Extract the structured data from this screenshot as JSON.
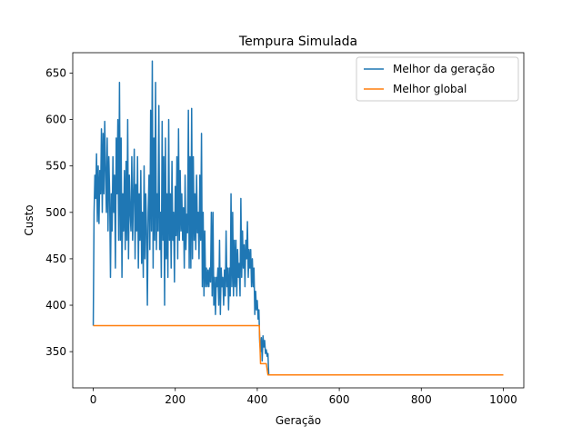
{
  "chart_data": {
    "type": "line",
    "title": "Tempura Simulada",
    "xlabel": "Geração",
    "ylabel": "Custo",
    "xlim": [
      -50,
      1050
    ],
    "ylim": [
      311,
      672
    ],
    "xticks": [
      0,
      200,
      400,
      600,
      800,
      1000
    ],
    "yticks": [
      350,
      400,
      450,
      500,
      550,
      600,
      650
    ],
    "grid": false,
    "legend_position": "top-right",
    "series": [
      {
        "name": "Melhor da geração",
        "color": "#1f77b4",
        "keypoints": [
          [
            0,
            378
          ],
          [
            2,
            500
          ],
          [
            4,
            540
          ],
          [
            6,
            515
          ],
          [
            8,
            563
          ],
          [
            10,
            490
          ],
          [
            12,
            550
          ],
          [
            14,
            488
          ],
          [
            16,
            545
          ],
          [
            18,
            520
          ],
          [
            20,
            590
          ],
          [
            22,
            500
          ],
          [
            24,
            585
          ],
          [
            26,
            520
          ],
          [
            28,
            598
          ],
          [
            30,
            545
          ],
          [
            32,
            500
          ],
          [
            34,
            580
          ],
          [
            36,
            480
          ],
          [
            38,
            560
          ],
          [
            40,
            520
          ],
          [
            42,
            430
          ],
          [
            44,
            520
          ],
          [
            46,
            480
          ],
          [
            48,
            560
          ],
          [
            50,
            500
          ],
          [
            52,
            540
          ],
          [
            54,
            440
          ],
          [
            56,
            580
          ],
          [
            58,
            520
          ],
          [
            60,
            600
          ],
          [
            62,
            470
          ],
          [
            64,
            640
          ],
          [
            66,
            470
          ],
          [
            68,
            580
          ],
          [
            70,
            430
          ],
          [
            72,
            520
          ],
          [
            74,
            480
          ],
          [
            76,
            545
          ],
          [
            78,
            460
          ],
          [
            80,
            555
          ],
          [
            82,
            470
          ],
          [
            84,
            600
          ],
          [
            86,
            450
          ],
          [
            88,
            540
          ],
          [
            90,
            500
          ],
          [
            92,
            480
          ],
          [
            94,
            560
          ],
          [
            96,
            470
          ],
          [
            98,
            520
          ],
          [
            100,
            568
          ],
          [
            102,
            450
          ],
          [
            104,
            530
          ],
          [
            106,
            480
          ],
          [
            108,
            560
          ],
          [
            110,
            440
          ],
          [
            112,
            520
          ],
          [
            114,
            470
          ],
          [
            116,
            545
          ],
          [
            118,
            445
          ],
          [
            120,
            500
          ],
          [
            122,
            430
          ],
          [
            124,
            550
          ],
          [
            126,
            450
          ],
          [
            128,
            520
          ],
          [
            130,
            480
          ],
          [
            132,
            400
          ],
          [
            134,
            500
          ],
          [
            136,
            540
          ],
          [
            138,
            460
          ],
          [
            140,
            610
          ],
          [
            142,
            480
          ],
          [
            144,
            663
          ],
          [
            146,
            440
          ],
          [
            148,
            580
          ],
          [
            150,
            470
          ],
          [
            152,
            640
          ],
          [
            154,
            460
          ],
          [
            156,
            520
          ],
          [
            158,
            480
          ],
          [
            160,
            615
          ],
          [
            162,
            460
          ],
          [
            164,
            500
          ],
          [
            166,
            430
          ],
          [
            168,
            598
          ],
          [
            170,
            470
          ],
          [
            172,
            560
          ],
          [
            174,
            400
          ],
          [
            176,
            580
          ],
          [
            178,
            450
          ],
          [
            180,
            520
          ],
          [
            182,
            430
          ],
          [
            184,
            600
          ],
          [
            186,
            470
          ],
          [
            188,
            520
          ],
          [
            190,
            440
          ],
          [
            192,
            555
          ],
          [
            194,
            470
          ],
          [
            196,
            500
          ],
          [
            198,
            425
          ],
          [
            200,
            528
          ],
          [
            202,
            475
          ],
          [
            204,
            560
          ],
          [
            206,
            450
          ],
          [
            208,
            590
          ],
          [
            210,
            470
          ],
          [
            212,
            545
          ],
          [
            214,
            480
          ],
          [
            216,
            520
          ],
          [
            218,
            470
          ],
          [
            220,
            505
          ],
          [
            222,
            440
          ],
          [
            224,
            540
          ],
          [
            226,
            460
          ],
          [
            228,
            498
          ],
          [
            230,
            478
          ],
          [
            232,
            610
          ],
          [
            234,
            440
          ],
          [
            236,
            560
          ],
          [
            238,
            440
          ],
          [
            240,
            612
          ],
          [
            242,
            450
          ],
          [
            244,
            560
          ],
          [
            246,
            470
          ],
          [
            248,
            520
          ],
          [
            250,
            460
          ],
          [
            252,
            540
          ],
          [
            254,
            478
          ],
          [
            256,
            500
          ],
          [
            258,
            450
          ],
          [
            260,
            540
          ],
          [
            262,
            470
          ],
          [
            264,
            585
          ],
          [
            266,
            420
          ],
          [
            268,
            500
          ],
          [
            270,
            410
          ],
          [
            272,
            480
          ],
          [
            274,
            420
          ],
          [
            276,
            440
          ],
          [
            278,
            420
          ],
          [
            280,
            438
          ],
          [
            282,
            420
          ],
          [
            284,
            440
          ],
          [
            286,
            425
          ],
          [
            288,
            500
          ],
          [
            290,
            410
          ],
          [
            292,
            500
          ],
          [
            294,
            400
          ],
          [
            296,
            430
          ],
          [
            298,
            390
          ],
          [
            300,
            430
          ],
          [
            302,
            420
          ],
          [
            304,
            440
          ],
          [
            306,
            400
          ],
          [
            308,
            470
          ],
          [
            310,
            390
          ],
          [
            312,
            440
          ],
          [
            314,
            420
          ],
          [
            316,
            430
          ],
          [
            318,
            400
          ],
          [
            320,
            438
          ],
          [
            322,
            410
          ],
          [
            324,
            480
          ],
          [
            326,
            420
          ],
          [
            328,
            440
          ],
          [
            330,
            395
          ],
          [
            332,
            440
          ],
          [
            334,
            410
          ],
          [
            336,
            520
          ],
          [
            338,
            420
          ],
          [
            340,
            500
          ],
          [
            342,
            410
          ],
          [
            344,
            470
          ],
          [
            346,
            420
          ],
          [
            348,
            470
          ],
          [
            350,
            410
          ],
          [
            352,
            460
          ],
          [
            354,
            430
          ],
          [
            356,
            445
          ],
          [
            358,
            410
          ],
          [
            360,
            515
          ],
          [
            362,
            430
          ],
          [
            364,
            480
          ],
          [
            366,
            440
          ],
          [
            368,
            465
          ],
          [
            370,
            420
          ],
          [
            372,
            470
          ],
          [
            374,
            450
          ],
          [
            376,
            490
          ],
          [
            378,
            430
          ],
          [
            380,
            460
          ],
          [
            382,
            440
          ],
          [
            384,
            460
          ],
          [
            386,
            420
          ],
          [
            388,
            450
          ],
          [
            390,
            420
          ],
          [
            392,
            440
          ],
          [
            394,
            390
          ],
          [
            396,
            415
          ],
          [
            398,
            395
          ],
          [
            400,
            405
          ],
          [
            402,
            385
          ],
          [
            404,
            395
          ],
          [
            406,
            360
          ],
          [
            408,
            350
          ],
          [
            410,
            365
          ],
          [
            412,
            340
          ],
          [
            414,
            367
          ],
          [
            416,
            355
          ],
          [
            418,
            362
          ],
          [
            420,
            348
          ],
          [
            422,
            352
          ],
          [
            424,
            345
          ],
          [
            426,
            348
          ],
          [
            428,
            325
          ],
          [
            430,
            325
          ],
          [
            1000,
            325
          ]
        ]
      },
      {
        "name": "Melhor global",
        "color": "#ff7f0e",
        "keypoints": [
          [
            0,
            378
          ],
          [
            405,
            378
          ],
          [
            408,
            337
          ],
          [
            422,
            337
          ],
          [
            426,
            325
          ],
          [
            1000,
            325
          ]
        ]
      }
    ]
  }
}
